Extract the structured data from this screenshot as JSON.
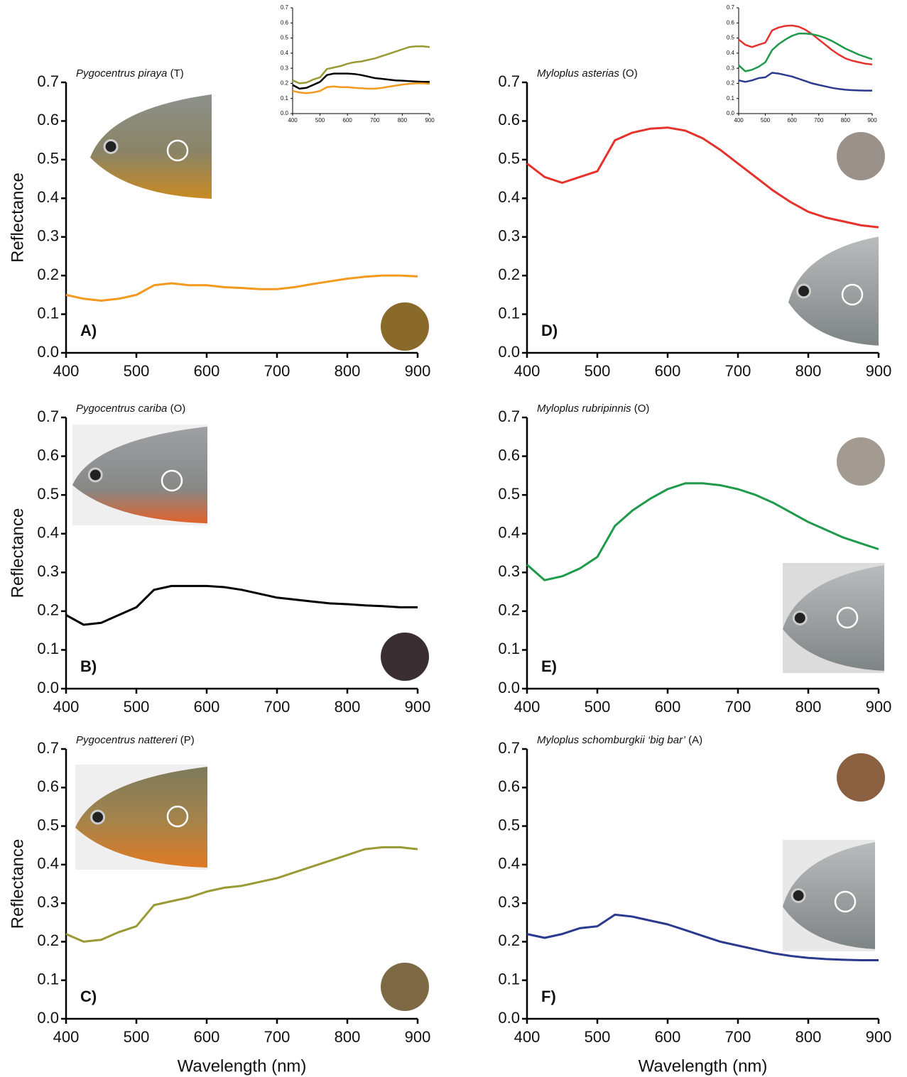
{
  "chart_data": [
    {
      "type": "line",
      "title": "Pygocentrus piraya",
      "title_suffix": "(T)",
      "panel_label": "A)",
      "y_label": "Reflectance",
      "x": [
        400,
        425,
        450,
        475,
        500,
        525,
        550,
        575,
        600,
        625,
        650,
        675,
        700,
        725,
        750,
        775,
        800,
        825,
        850,
        875,
        900
      ],
      "series": [
        {
          "color": "#f39a1e",
          "values": [
            0.15,
            0.14,
            0.135,
            0.14,
            0.15,
            0.175,
            0.18,
            0.175,
            0.175,
            0.17,
            0.168,
            0.165,
            0.165,
            0.17,
            0.178,
            0.185,
            0.192,
            0.197,
            0.2,
            0.2,
            0.198
          ]
        }
      ],
      "xlim": [
        400,
        900
      ],
      "ylim": [
        0,
        0.7
      ],
      "xticks": [
        400,
        500,
        600,
        700,
        800,
        900
      ],
      "yticks": [
        {
          "value": 0,
          "label": "0.0"
        },
        0.1,
        0.2,
        0.3,
        0.4,
        0.5,
        0.6,
        0.7
      ]
    },
    {
      "type": "line",
      "title": "Pygocentrus cariba",
      "title_suffix": "(O)",
      "panel_label": "B)",
      "y_label": "Reflectance",
      "x": [
        400,
        425,
        450,
        475,
        500,
        525,
        550,
        575,
        600,
        625,
        650,
        675,
        700,
        725,
        750,
        775,
        800,
        825,
        850,
        875,
        900
      ],
      "series": [
        {
          "color": "#000000",
          "values": [
            0.19,
            0.165,
            0.17,
            0.19,
            0.21,
            0.255,
            0.265,
            0.265,
            0.265,
            0.262,
            0.255,
            0.245,
            0.235,
            0.23,
            0.225,
            0.22,
            0.218,
            0.215,
            0.213,
            0.21,
            0.21
          ]
        }
      ],
      "xlim": [
        400,
        900
      ],
      "ylim": [
        0,
        0.7
      ],
      "xticks": [
        400,
        500,
        600,
        700,
        800,
        900
      ],
      "yticks": [
        {
          "value": 0,
          "label": "0.0"
        },
        0.1,
        0.2,
        0.3,
        0.4,
        0.5,
        0.6,
        0.7
      ]
    },
    {
      "type": "line",
      "title": "Pygocentrus nattereri",
      "title_suffix": "(P)",
      "panel_label": "C)",
      "y_label": "Reflectance",
      "x_label": "Wavelength (nm)",
      "x": [
        400,
        425,
        450,
        475,
        500,
        525,
        550,
        575,
        600,
        625,
        650,
        675,
        700,
        725,
        750,
        775,
        800,
        825,
        850,
        875,
        900
      ],
      "series": [
        {
          "color": "#9a9a35",
          "values": [
            0.22,
            0.2,
            0.205,
            0.225,
            0.24,
            0.295,
            0.305,
            0.315,
            0.33,
            0.34,
            0.345,
            0.355,
            0.365,
            0.38,
            0.395,
            0.41,
            0.425,
            0.44,
            0.445,
            0.445,
            0.44
          ]
        }
      ],
      "xlim": [
        400,
        900
      ],
      "ylim": [
        0,
        0.7
      ],
      "xticks": [
        400,
        500,
        600,
        700,
        800,
        900
      ],
      "yticks": [
        {
          "value": 0,
          "label": "0.0"
        },
        0.1,
        0.2,
        0.3,
        0.4,
        0.5,
        0.6,
        0.7
      ]
    },
    {
      "type": "line",
      "title": "Myloplus asterias",
      "title_suffix": "(O)",
      "panel_label": "D)",
      "x": [
        400,
        425,
        450,
        475,
        500,
        525,
        550,
        575,
        600,
        625,
        650,
        675,
        700,
        725,
        750,
        775,
        800,
        825,
        850,
        875,
        900
      ],
      "series": [
        {
          "color": "#e5322d",
          "values": [
            0.49,
            0.455,
            0.44,
            0.455,
            0.47,
            0.55,
            0.57,
            0.58,
            0.583,
            0.575,
            0.555,
            0.525,
            0.49,
            0.455,
            0.42,
            0.39,
            0.365,
            0.35,
            0.34,
            0.33,
            0.325
          ]
        }
      ],
      "xlim": [
        400,
        900
      ],
      "ylim": [
        0,
        0.7
      ],
      "xticks": [
        400,
        500,
        600,
        700,
        800,
        900
      ],
      "yticks": [
        {
          "value": 0,
          "label": "0.0"
        },
        0.1,
        0.2,
        0.3,
        0.4,
        0.5,
        0.6,
        0.7
      ]
    },
    {
      "type": "line",
      "title": "Myloplus rubripinnis",
      "title_suffix": "(O)",
      "panel_label": "E)",
      "x": [
        400,
        425,
        450,
        475,
        500,
        525,
        550,
        575,
        600,
        625,
        650,
        675,
        700,
        725,
        750,
        775,
        800,
        825,
        850,
        875,
        900
      ],
      "series": [
        {
          "color": "#1f9a4a",
          "values": [
            0.32,
            0.28,
            0.29,
            0.31,
            0.34,
            0.42,
            0.46,
            0.49,
            0.515,
            0.53,
            0.53,
            0.525,
            0.515,
            0.5,
            0.48,
            0.455,
            0.43,
            0.41,
            0.39,
            0.375,
            0.36
          ]
        }
      ],
      "xlim": [
        400,
        900
      ],
      "ylim": [
        0,
        0.7
      ],
      "xticks": [
        400,
        500,
        600,
        700,
        800,
        900
      ],
      "yticks": [
        {
          "value": 0,
          "label": "0.0"
        },
        0.1,
        0.2,
        0.3,
        0.4,
        0.5,
        0.6,
        0.7
      ]
    },
    {
      "type": "line",
      "title": "Myloplus schomburgkii ‘big bar’",
      "title_suffix": "(A)",
      "panel_label": "F)",
      "x_label": "Wavelength (nm)",
      "x": [
        400,
        425,
        450,
        475,
        500,
        525,
        550,
        575,
        600,
        625,
        650,
        675,
        700,
        725,
        750,
        775,
        800,
        825,
        850,
        875,
        900
      ],
      "series": [
        {
          "color": "#2b3a8f",
          "values": [
            0.22,
            0.21,
            0.22,
            0.235,
            0.24,
            0.27,
            0.265,
            0.255,
            0.245,
            0.23,
            0.215,
            0.2,
            0.19,
            0.18,
            0.17,
            0.163,
            0.158,
            0.155,
            0.153,
            0.152,
            0.152
          ]
        }
      ],
      "xlim": [
        400,
        900
      ],
      "ylim": [
        0,
        0.7
      ],
      "xticks": [
        400,
        500,
        600,
        700,
        800,
        900
      ],
      "yticks": [
        {
          "value": 0,
          "label": "0.0"
        },
        0.1,
        0.2,
        0.3,
        0.4,
        0.5,
        0.6,
        0.7
      ]
    },
    {
      "type": "line",
      "x": [
        400,
        425,
        450,
        475,
        500,
        525,
        550,
        575,
        600,
        625,
        650,
        675,
        700,
        725,
        750,
        775,
        800,
        825,
        850,
        875,
        900
      ],
      "series": [
        {
          "color": "#9a9a35",
          "values": [
            0.22,
            0.2,
            0.205,
            0.225,
            0.24,
            0.295,
            0.305,
            0.315,
            0.33,
            0.34,
            0.345,
            0.355,
            0.365,
            0.38,
            0.395,
            0.41,
            0.425,
            0.44,
            0.445,
            0.445,
            0.44
          ]
        },
        {
          "color": "#000000",
          "values": [
            0.19,
            0.165,
            0.17,
            0.19,
            0.21,
            0.255,
            0.265,
            0.265,
            0.265,
            0.262,
            0.255,
            0.245,
            0.235,
            0.23,
            0.225,
            0.22,
            0.218,
            0.215,
            0.213,
            0.21,
            0.21
          ]
        },
        {
          "color": "#f39a1e",
          "values": [
            0.15,
            0.14,
            0.135,
            0.14,
            0.15,
            0.175,
            0.18,
            0.175,
            0.175,
            0.17,
            0.168,
            0.165,
            0.165,
            0.17,
            0.178,
            0.185,
            0.192,
            0.197,
            0.2,
            0.2,
            0.198
          ]
        }
      ],
      "xlim": [
        400,
        900
      ],
      "ylim": [
        0,
        0.7
      ],
      "xticks": [
        400,
        500,
        600,
        700,
        800,
        900
      ],
      "yticks": [
        {
          "value": 0,
          "label": "0.0"
        },
        0.1,
        0.2,
        0.3,
        0.4,
        0.5,
        0.6,
        0.7
      ]
    },
    {
      "type": "line",
      "x": [
        400,
        425,
        450,
        475,
        500,
        525,
        550,
        575,
        600,
        625,
        650,
        675,
        700,
        725,
        750,
        775,
        800,
        825,
        850,
        875,
        900
      ],
      "series": [
        {
          "color": "#e5322d",
          "values": [
            0.49,
            0.455,
            0.44,
            0.455,
            0.47,
            0.55,
            0.57,
            0.58,
            0.583,
            0.575,
            0.555,
            0.525,
            0.49,
            0.455,
            0.42,
            0.39,
            0.365,
            0.35,
            0.34,
            0.33,
            0.325
          ]
        },
        {
          "color": "#1f9a4a",
          "values": [
            0.32,
            0.28,
            0.29,
            0.31,
            0.34,
            0.42,
            0.46,
            0.49,
            0.515,
            0.53,
            0.53,
            0.525,
            0.515,
            0.5,
            0.48,
            0.455,
            0.43,
            0.41,
            0.39,
            0.375,
            0.36
          ]
        },
        {
          "color": "#2b3a8f",
          "values": [
            0.22,
            0.21,
            0.22,
            0.235,
            0.24,
            0.27,
            0.265,
            0.255,
            0.245,
            0.23,
            0.215,
            0.2,
            0.19,
            0.18,
            0.17,
            0.163,
            0.158,
            0.155,
            0.153,
            0.152,
            0.152
          ]
        }
      ],
      "xlim": [
        400,
        900
      ],
      "ylim": [
        0,
        0.7
      ],
      "xticks": [
        400,
        500,
        600,
        700,
        800,
        900
      ],
      "yticks": [
        {
          "value": 0,
          "label": "0.0"
        },
        0.1,
        0.2,
        0.3,
        0.4,
        0.5,
        0.6,
        0.7
      ]
    }
  ]
}
